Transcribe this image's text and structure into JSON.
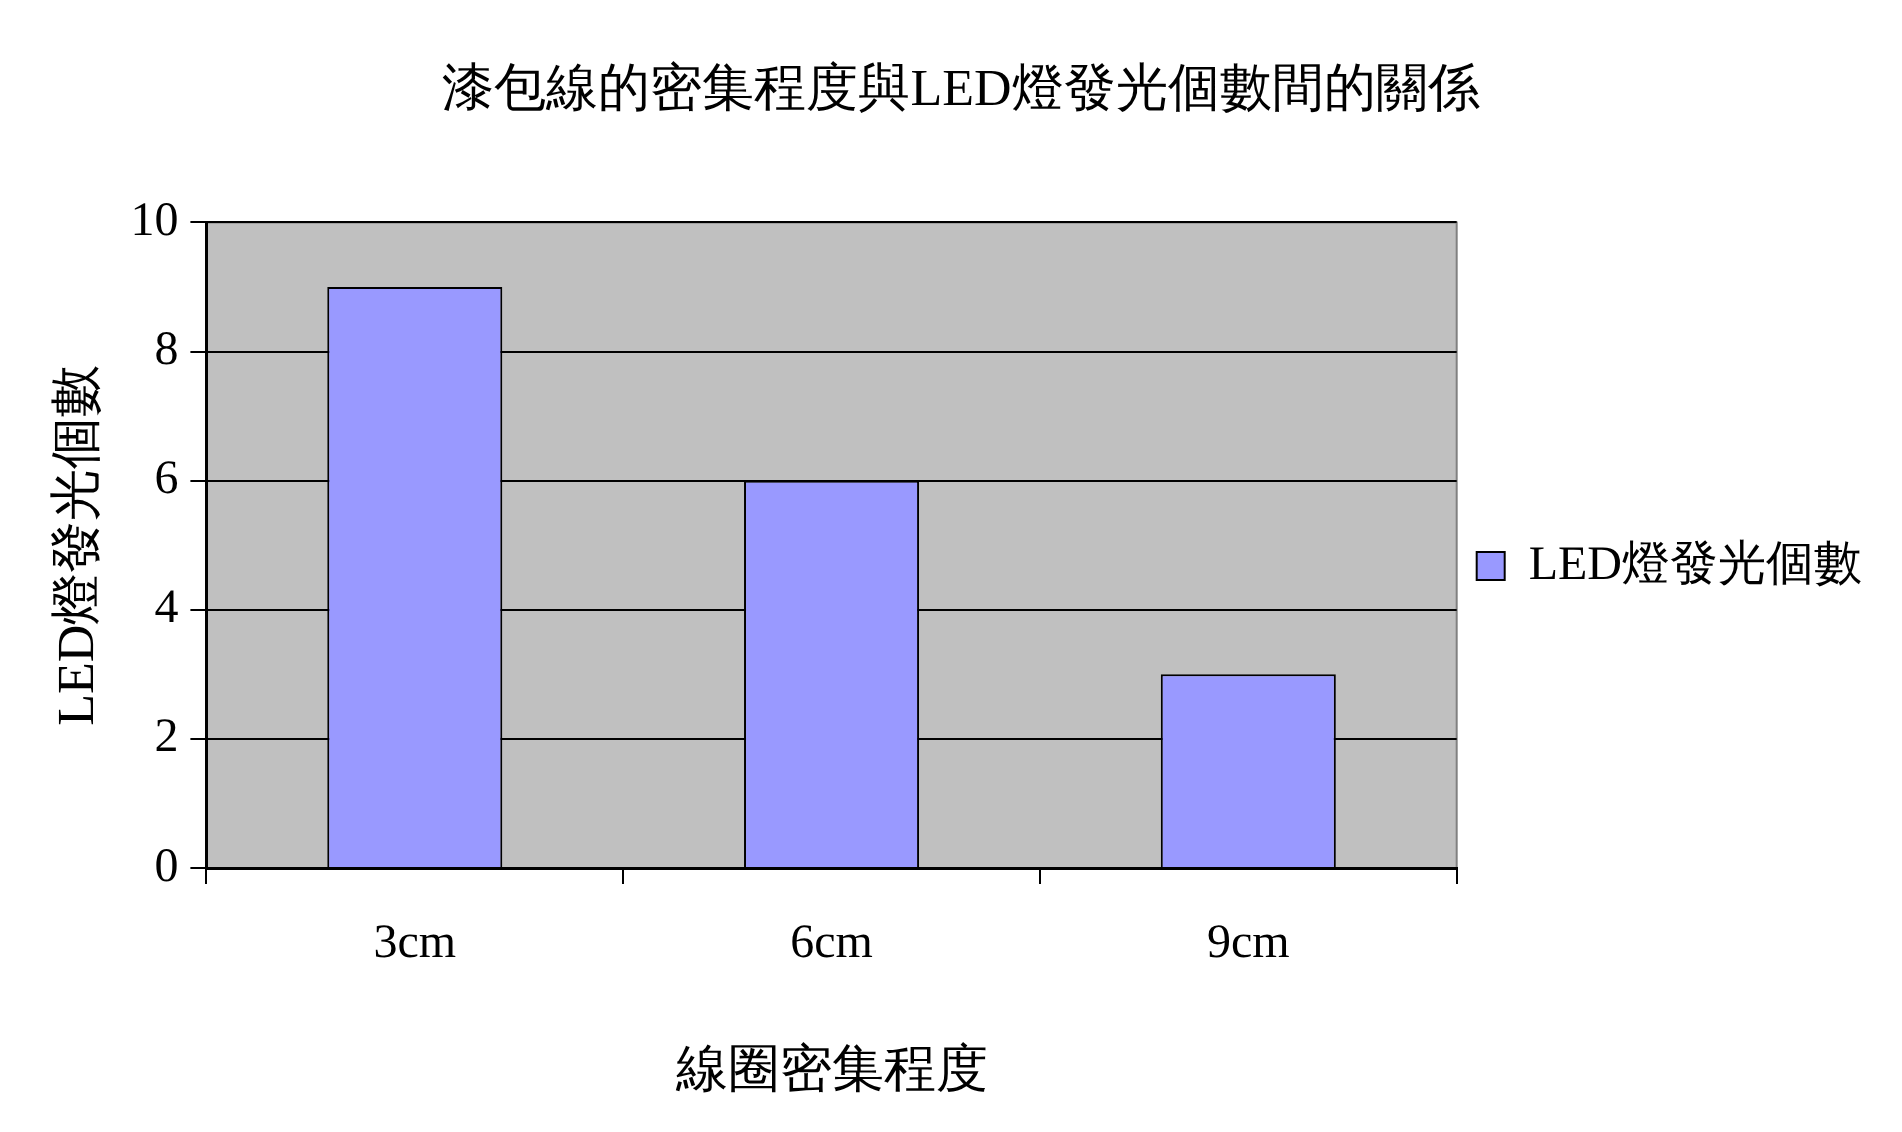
{
  "chart_data": {
    "type": "bar",
    "title": "漆包線的密集程度與LED燈發光個數間的關係",
    "xlabel": "線圈密集程度",
    "ylabel": "LED燈發光個數",
    "categories": [
      "3cm",
      "6cm",
      "9cm"
    ],
    "series": [
      {
        "name": "LED燈發光個數",
        "color": "#9999ff",
        "values": [
          9,
          6,
          3
        ]
      }
    ],
    "ylim": [
      0,
      10
    ],
    "yticks": [
      0,
      2,
      4,
      6,
      8,
      10
    ],
    "grid": "y",
    "legend": "right"
  }
}
